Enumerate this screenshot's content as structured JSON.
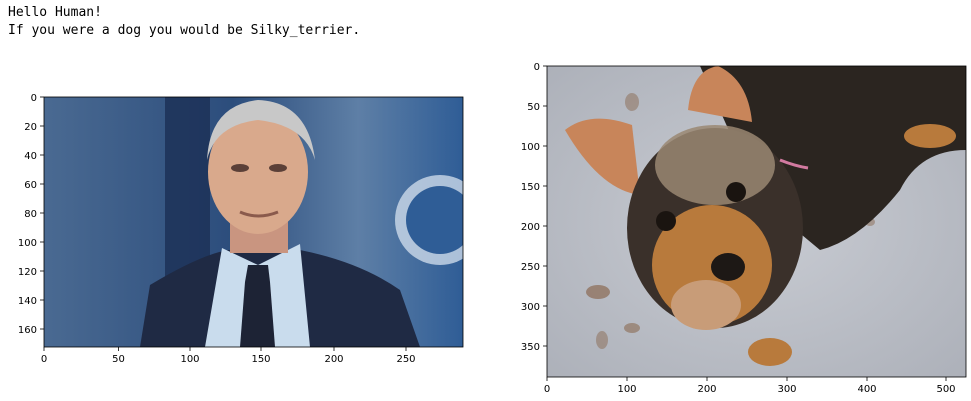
{
  "output": {
    "line1": "Hello Human!",
    "line2": "If you were a dog you would be Silky_terrier."
  },
  "figures": {
    "human": {
      "subject": "person-photo",
      "yticks": [
        "0",
        "20",
        "40",
        "60",
        "80",
        "100",
        "120",
        "140",
        "160"
      ],
      "xticks": [
        "0",
        "50",
        "100",
        "150",
        "200",
        "250"
      ]
    },
    "dog": {
      "subject": "dog-photo",
      "yticks": [
        "0",
        "50",
        "100",
        "150",
        "200",
        "250",
        "300",
        "350"
      ],
      "xticks": [
        "0",
        "100",
        "200",
        "300",
        "400",
        "500"
      ]
    }
  },
  "colors": {
    "human_bg": "#3d5a80",
    "suit": "#1f2a44",
    "shirt": "#c9dced",
    "skin": "#d9a98c",
    "hair": "#c8c8c8",
    "floor": "#b9bcc4",
    "dog_black": "#2b2520",
    "dog_tan": "#b87a3c"
  }
}
